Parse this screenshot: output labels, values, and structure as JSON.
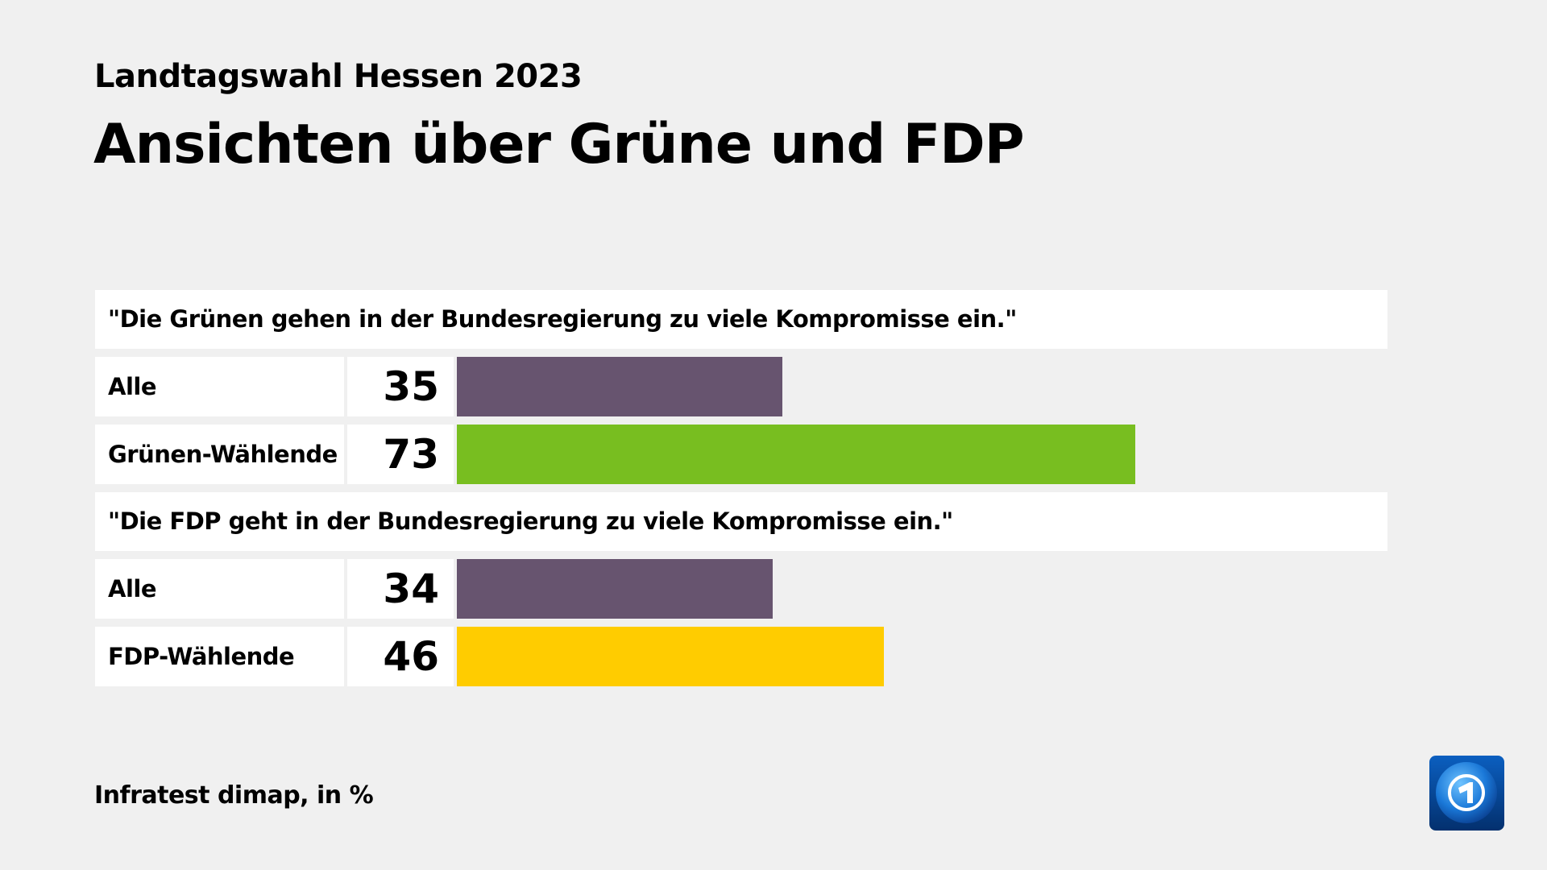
{
  "header": {
    "subtitle": "Landtagswahl Hessen 2023",
    "title": "Ansichten über Grüne und FDP"
  },
  "footer": {
    "source": "Infratest dimap, in %"
  },
  "logo": {
    "name": "tagesschau-logo",
    "text": "1"
  },
  "chart_data": {
    "type": "bar",
    "unit": "%",
    "xlim": [
      0,
      100
    ],
    "groups": [
      {
        "question": "\"Die Grünen gehen in der Bundesregierung zu viele Kompromisse ein.\"",
        "rows": [
          {
            "label": "Alle",
            "value": 35,
            "color": "#67546f"
          },
          {
            "label": "Grünen-Wählende",
            "value": 73,
            "color": "#78be20"
          }
        ]
      },
      {
        "question": "\"Die FDP geht in der Bundesregierung zu viele Kompromisse ein.\"",
        "rows": [
          {
            "label": "Alle",
            "value": 34,
            "color": "#67546f"
          },
          {
            "label": "FDP-Wählende",
            "value": 46,
            "color": "#ffcc00"
          }
        ]
      }
    ]
  }
}
